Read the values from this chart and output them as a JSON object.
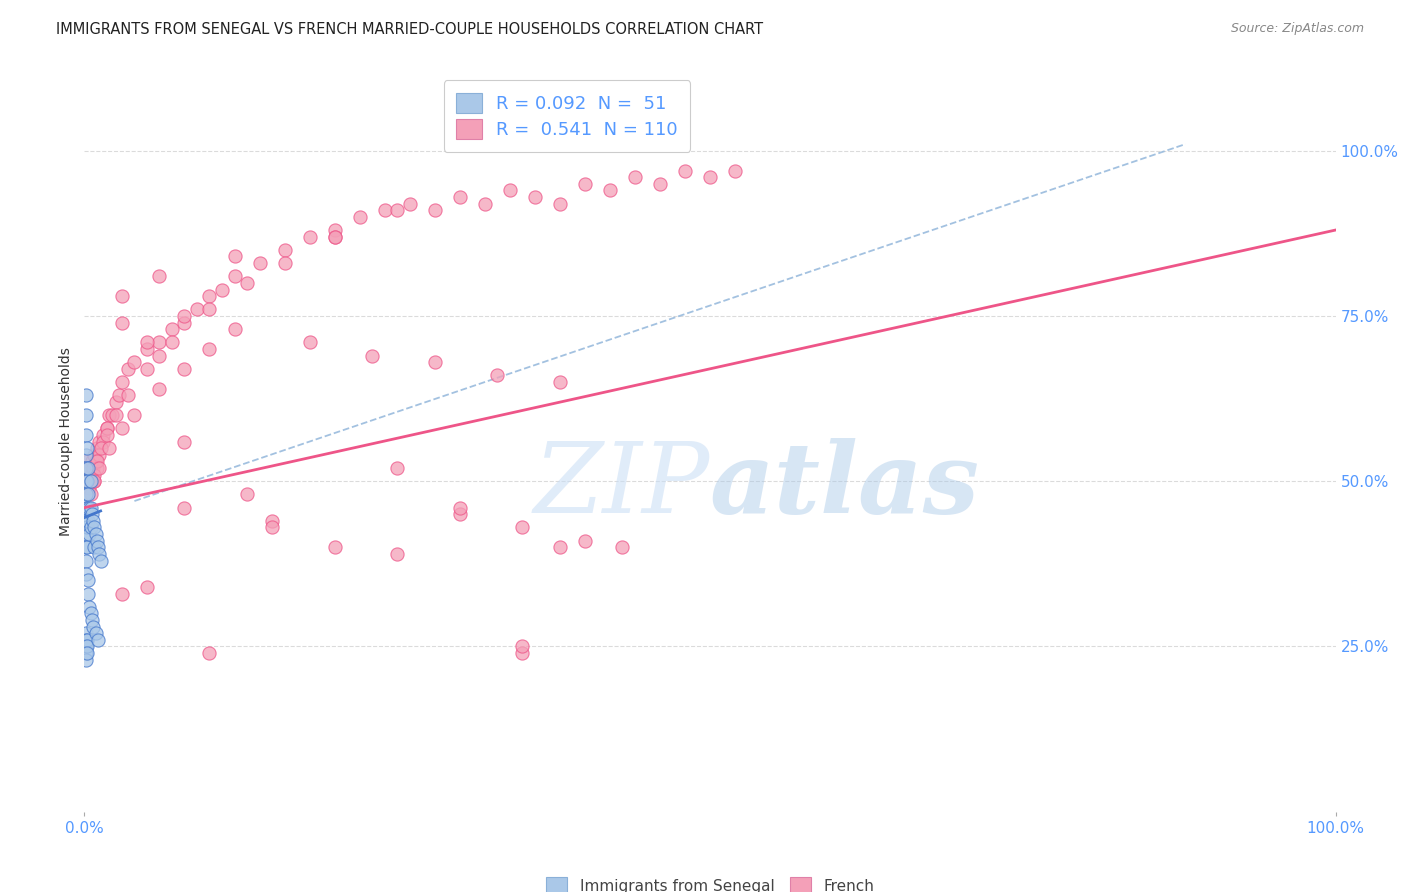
{
  "title": "IMMIGRANTS FROM SENEGAL VS FRENCH MARRIED-COUPLE HOUSEHOLDS CORRELATION CHART",
  "source": "Source: ZipAtlas.com",
  "ylabel": "Married-couple Households",
  "ytick_values": [
    0.25,
    0.5,
    0.75,
    1.0
  ],
  "ytick_labels": [
    "25.0%",
    "50.0%",
    "75.0%",
    "100.0%"
  ],
  "xtick_values": [
    0.0,
    1.0
  ],
  "xtick_labels": [
    "0.0%",
    "100.0%"
  ],
  "blue_color": "#aac8e8",
  "pink_color": "#f4a0b8",
  "blue_line_color": "#4477cc",
  "pink_line_color": "#ee5588",
  "dashed_line_color": "#99bbdd",
  "grid_color": "#cccccc",
  "tick_label_color": "#5599ff",
  "bg_color": "#ffffff",
  "watermark_color": "#c8ddf5",
  "title_fontsize": 10.5,
  "source_fontsize": 9,
  "legend_fontsize": 13,
  "axis_label_fontsize": 10,
  "tick_fontsize": 11,
  "blue_scatter_x": [
    0.001,
    0.001,
    0.001,
    0.001,
    0.001,
    0.001,
    0.001,
    0.001,
    0.001,
    0.001,
    0.001,
    0.001,
    0.001,
    0.002,
    0.002,
    0.002,
    0.002,
    0.002,
    0.003,
    0.003,
    0.003,
    0.004,
    0.004,
    0.005,
    0.005,
    0.005,
    0.006,
    0.007,
    0.008,
    0.008,
    0.009,
    0.01,
    0.011,
    0.012,
    0.013,
    0.001,
    0.001,
    0.001,
    0.001,
    0.001,
    0.002,
    0.002,
    0.002,
    0.003,
    0.003,
    0.004,
    0.005,
    0.006,
    0.007,
    0.009,
    0.011
  ],
  "blue_scatter_y": [
    0.63,
    0.6,
    0.57,
    0.54,
    0.52,
    0.5,
    0.48,
    0.46,
    0.44,
    0.42,
    0.4,
    0.38,
    0.36,
    0.55,
    0.5,
    0.46,
    0.43,
    0.4,
    0.52,
    0.48,
    0.44,
    0.46,
    0.42,
    0.5,
    0.46,
    0.43,
    0.45,
    0.44,
    0.43,
    0.4,
    0.42,
    0.41,
    0.4,
    0.39,
    0.38,
    0.27,
    0.26,
    0.25,
    0.24,
    0.23,
    0.26,
    0.25,
    0.24,
    0.35,
    0.33,
    0.31,
    0.3,
    0.29,
    0.28,
    0.27,
    0.26
  ],
  "pink_scatter_x": [
    0.001,
    0.002,
    0.003,
    0.004,
    0.005,
    0.006,
    0.007,
    0.008,
    0.009,
    0.01,
    0.012,
    0.015,
    0.018,
    0.02,
    0.008,
    0.01,
    0.012,
    0.015,
    0.018,
    0.022,
    0.025,
    0.028,
    0.03,
    0.035,
    0.04,
    0.05,
    0.06,
    0.07,
    0.08,
    0.09,
    0.1,
    0.11,
    0.12,
    0.14,
    0.16,
    0.18,
    0.2,
    0.22,
    0.24,
    0.26,
    0.28,
    0.3,
    0.32,
    0.34,
    0.36,
    0.38,
    0.4,
    0.42,
    0.44,
    0.46,
    0.48,
    0.5,
    0.52,
    0.004,
    0.006,
    0.008,
    0.01,
    0.013,
    0.018,
    0.025,
    0.035,
    0.05,
    0.07,
    0.1,
    0.13,
    0.16,
    0.2,
    0.25,
    0.005,
    0.008,
    0.012,
    0.02,
    0.03,
    0.04,
    0.06,
    0.08,
    0.1,
    0.03,
    0.06,
    0.12,
    0.2,
    0.15,
    0.3,
    0.35,
    0.4,
    0.43,
    0.25,
    0.35,
    0.1,
    0.2,
    0.3,
    0.38,
    0.15,
    0.05,
    0.08,
    0.25,
    0.35,
    0.03,
    0.08,
    0.13,
    0.03,
    0.05,
    0.06,
    0.08,
    0.12,
    0.18,
    0.23,
    0.28,
    0.33,
    0.38
  ],
  "pink_scatter_y": [
    0.52,
    0.53,
    0.52,
    0.5,
    0.51,
    0.53,
    0.52,
    0.54,
    0.53,
    0.55,
    0.56,
    0.57,
    0.58,
    0.6,
    0.5,
    0.52,
    0.54,
    0.56,
    0.58,
    0.6,
    0.62,
    0.63,
    0.65,
    0.67,
    0.68,
    0.7,
    0.71,
    0.73,
    0.74,
    0.76,
    0.78,
    0.79,
    0.81,
    0.83,
    0.85,
    0.87,
    0.88,
    0.9,
    0.91,
    0.92,
    0.91,
    0.93,
    0.92,
    0.94,
    0.93,
    0.92,
    0.95,
    0.94,
    0.96,
    0.95,
    0.97,
    0.96,
    0.97,
    0.49,
    0.5,
    0.51,
    0.53,
    0.55,
    0.57,
    0.6,
    0.63,
    0.67,
    0.71,
    0.76,
    0.8,
    0.83,
    0.87,
    0.91,
    0.48,
    0.5,
    0.52,
    0.55,
    0.58,
    0.6,
    0.64,
    0.67,
    0.7,
    0.78,
    0.81,
    0.84,
    0.87,
    0.44,
    0.45,
    0.43,
    0.41,
    0.4,
    0.39,
    0.24,
    0.24,
    0.4,
    0.46,
    0.4,
    0.43,
    0.34,
    0.56,
    0.52,
    0.25,
    0.33,
    0.46,
    0.48,
    0.74,
    0.71,
    0.69,
    0.75,
    0.73,
    0.71,
    0.69,
    0.68,
    0.66,
    0.65
  ],
  "blue_trend_x": [
    0.0,
    0.013
  ],
  "blue_trend_y": [
    0.445,
    0.455
  ],
  "pink_trend_x": [
    0.0,
    1.0
  ],
  "pink_trend_y": [
    0.46,
    0.88
  ],
  "dashed_line_x": [
    0.04,
    0.88
  ],
  "dashed_line_y": [
    0.47,
    1.01
  ],
  "xlim": [
    0.0,
    1.0
  ],
  "ylim": [
    0.0,
    1.12
  ]
}
